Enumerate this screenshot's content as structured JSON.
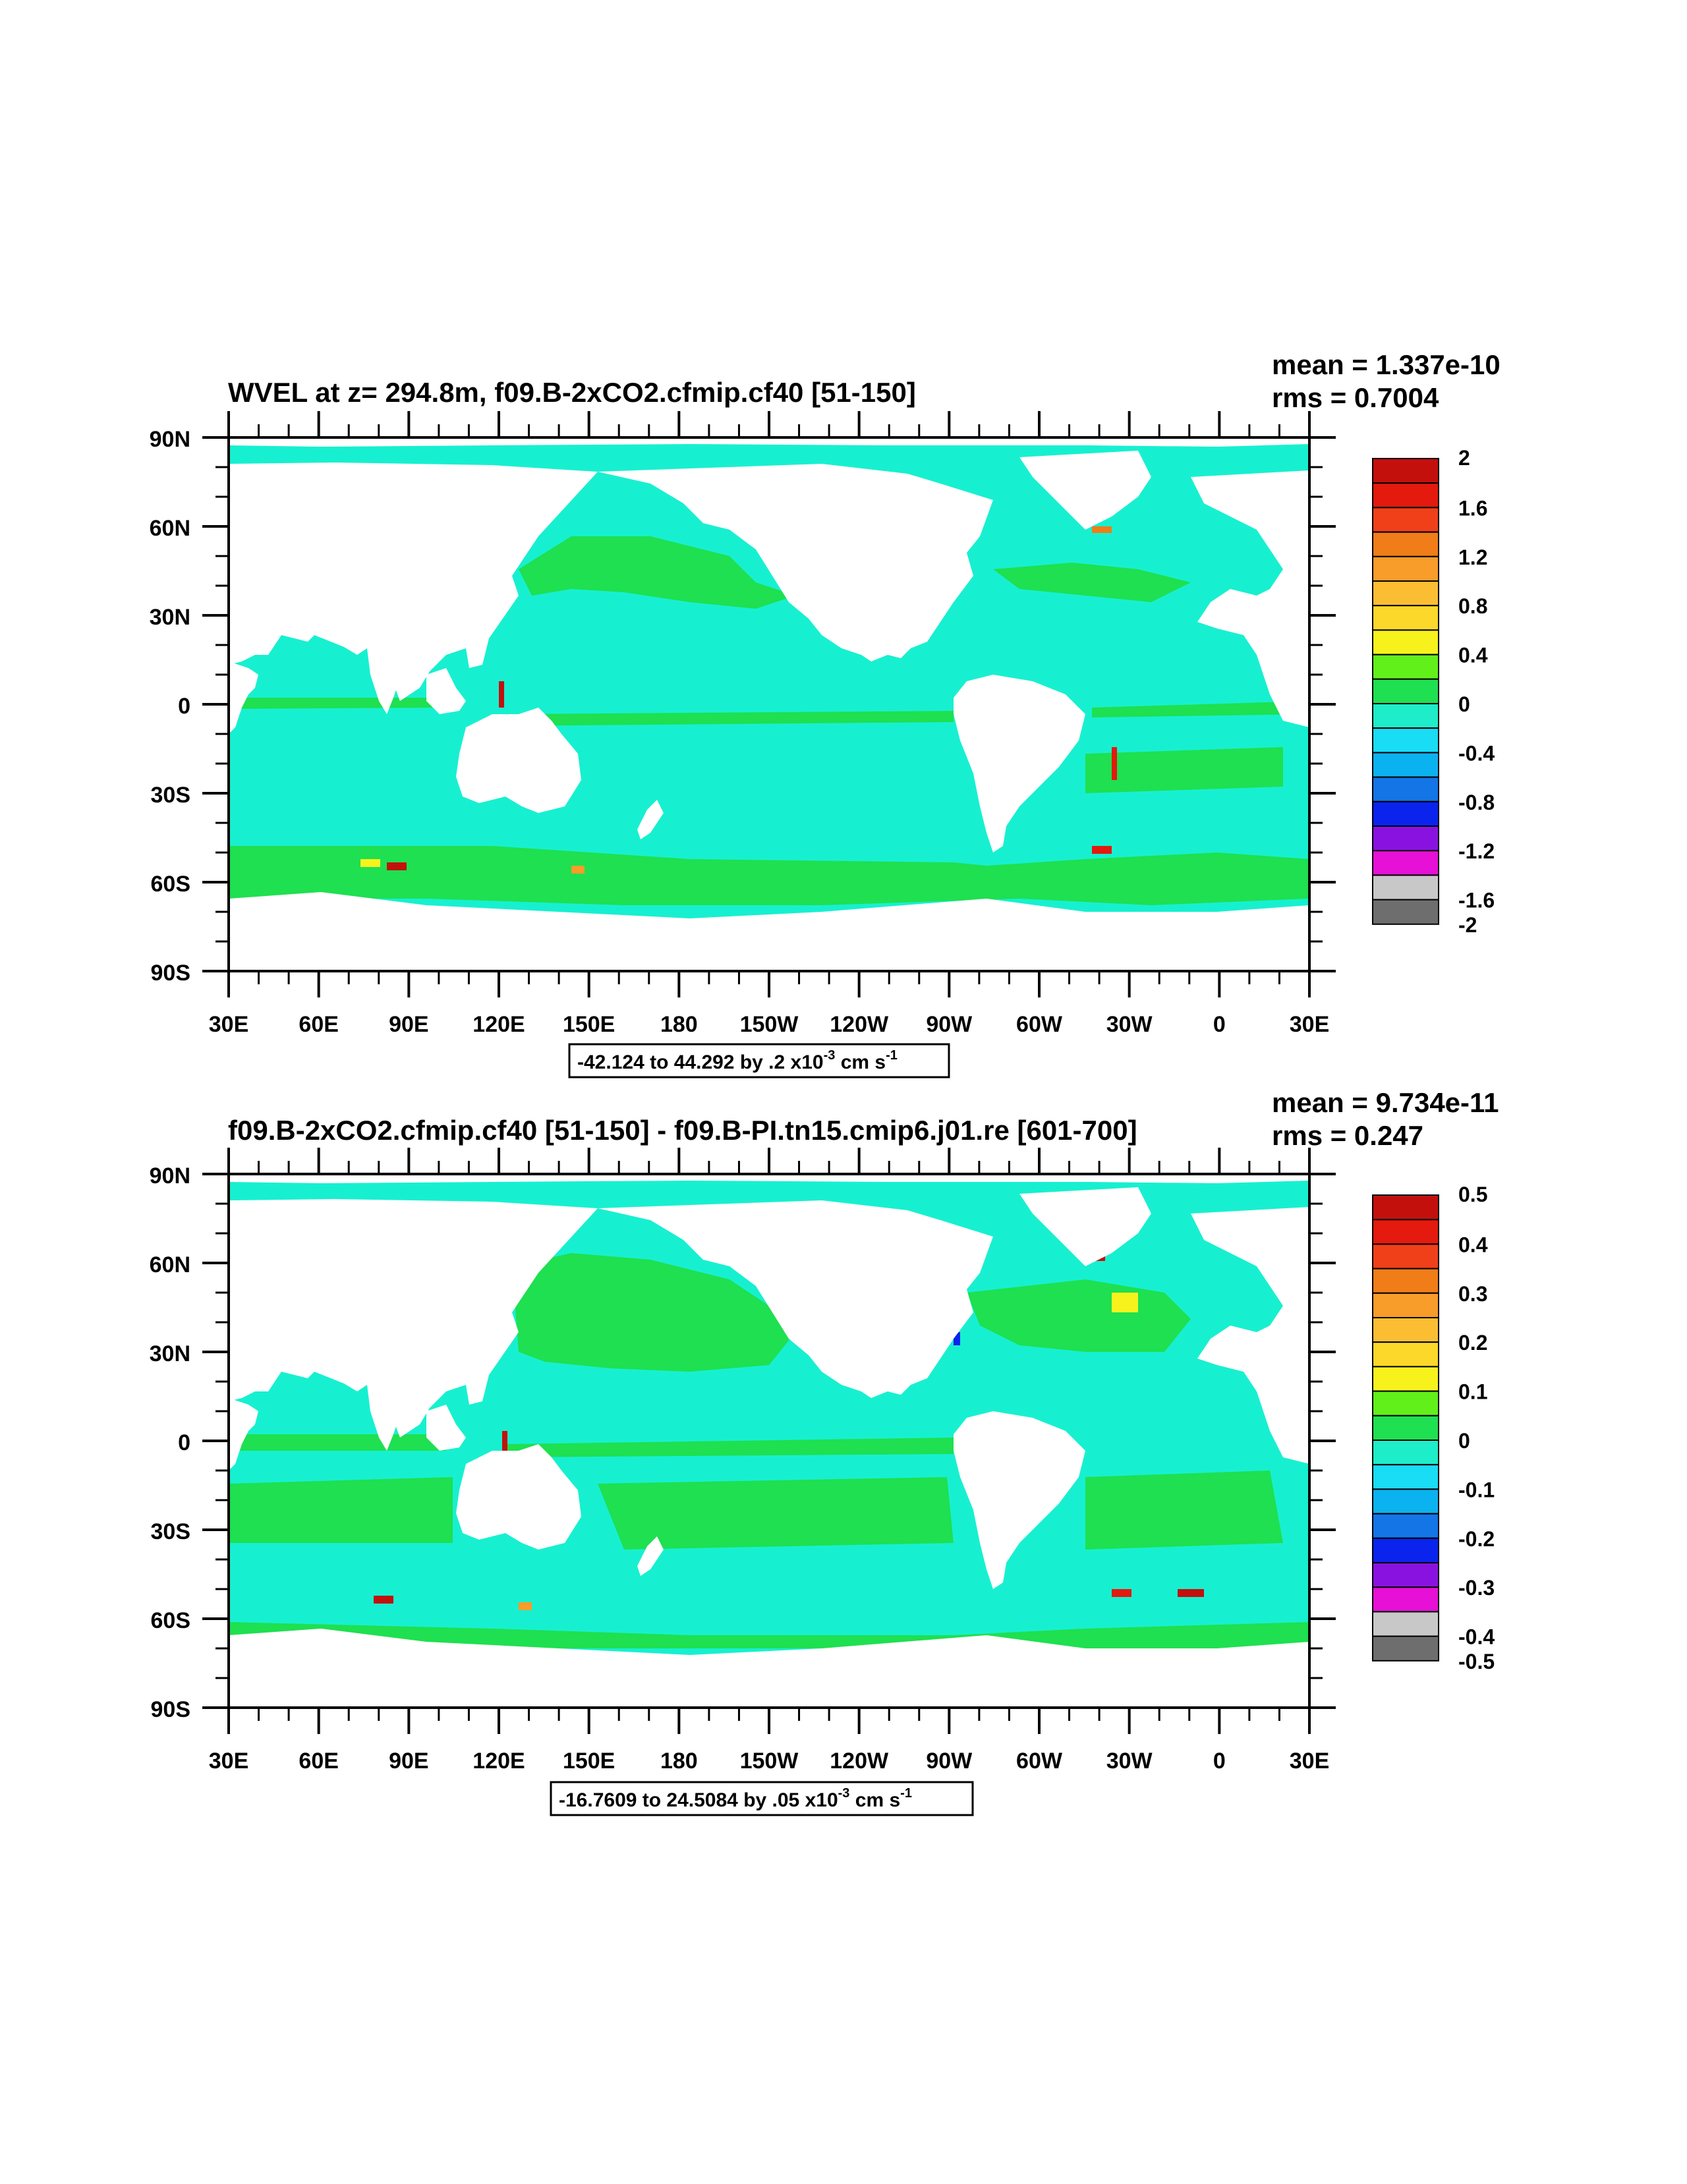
{
  "panels": [
    {
      "title": "WVEL at z= 294.8m, f09.B-2xCO2.cfmip.cf40 [51-150]",
      "mean": "mean = 1.337e-10",
      "rms": "rms = 0.7004",
      "contour_info_main": "-42.124 to 44.292 by .2 x10",
      "contour_info_exp": "-3",
      "contour_info_unit": " cm s",
      "contour_info_unit_exp": "-1",
      "colorbar_labels": [
        "2",
        "1.6",
        "1.2",
        "0.8",
        "0.4",
        "0",
        "-0.4",
        "-0.8",
        "-1.2",
        "-1.6",
        "-2"
      ]
    },
    {
      "title": "f09.B-2xCO2.cfmip.cf40 [51-150] - f09.B-PI.tn15.cmip6.j01.re [601-700]",
      "mean": "mean = 9.734e-11",
      "rms": "rms = 0.247",
      "contour_info_main": "-16.7609 to 24.5084 by .05 x10",
      "contour_info_exp": "-3",
      "contour_info_unit": " cm s",
      "contour_info_unit_exp": "-1",
      "colorbar_labels": [
        "0.5",
        "0.4",
        "0.3",
        "0.2",
        "0.1",
        "0",
        "-0.1",
        "-0.2",
        "-0.3",
        "-0.4",
        "-0.5"
      ]
    }
  ],
  "lat_labels": [
    "90N",
    "60N",
    "30N",
    "0",
    "30S",
    "60S",
    "90S"
  ],
  "lon_labels": [
    "30E",
    "60E",
    "90E",
    "120E",
    "150E",
    "180",
    "150W",
    "120W",
    "90W",
    "60W",
    "30W",
    "0",
    "30E"
  ],
  "colorbar_colors": [
    "#c3100d",
    "#e31a0d",
    "#f0401a",
    "#f07d17",
    "#f89c2a",
    "#fbbe33",
    "#fbd829",
    "#f7f21c",
    "#62f01a",
    "#1ee050",
    "#1dedc8",
    "#19dcf5",
    "#0bb2f0",
    "#1375e6",
    "#0a24ee",
    "#8a12e0",
    "#e610d6",
    "#c8c8c8",
    "#6e6e6e"
  ],
  "colors": {
    "ocean_main": "#17f0d0",
    "ocean_pos": "#1ee050",
    "land": "#ffffff"
  }
}
